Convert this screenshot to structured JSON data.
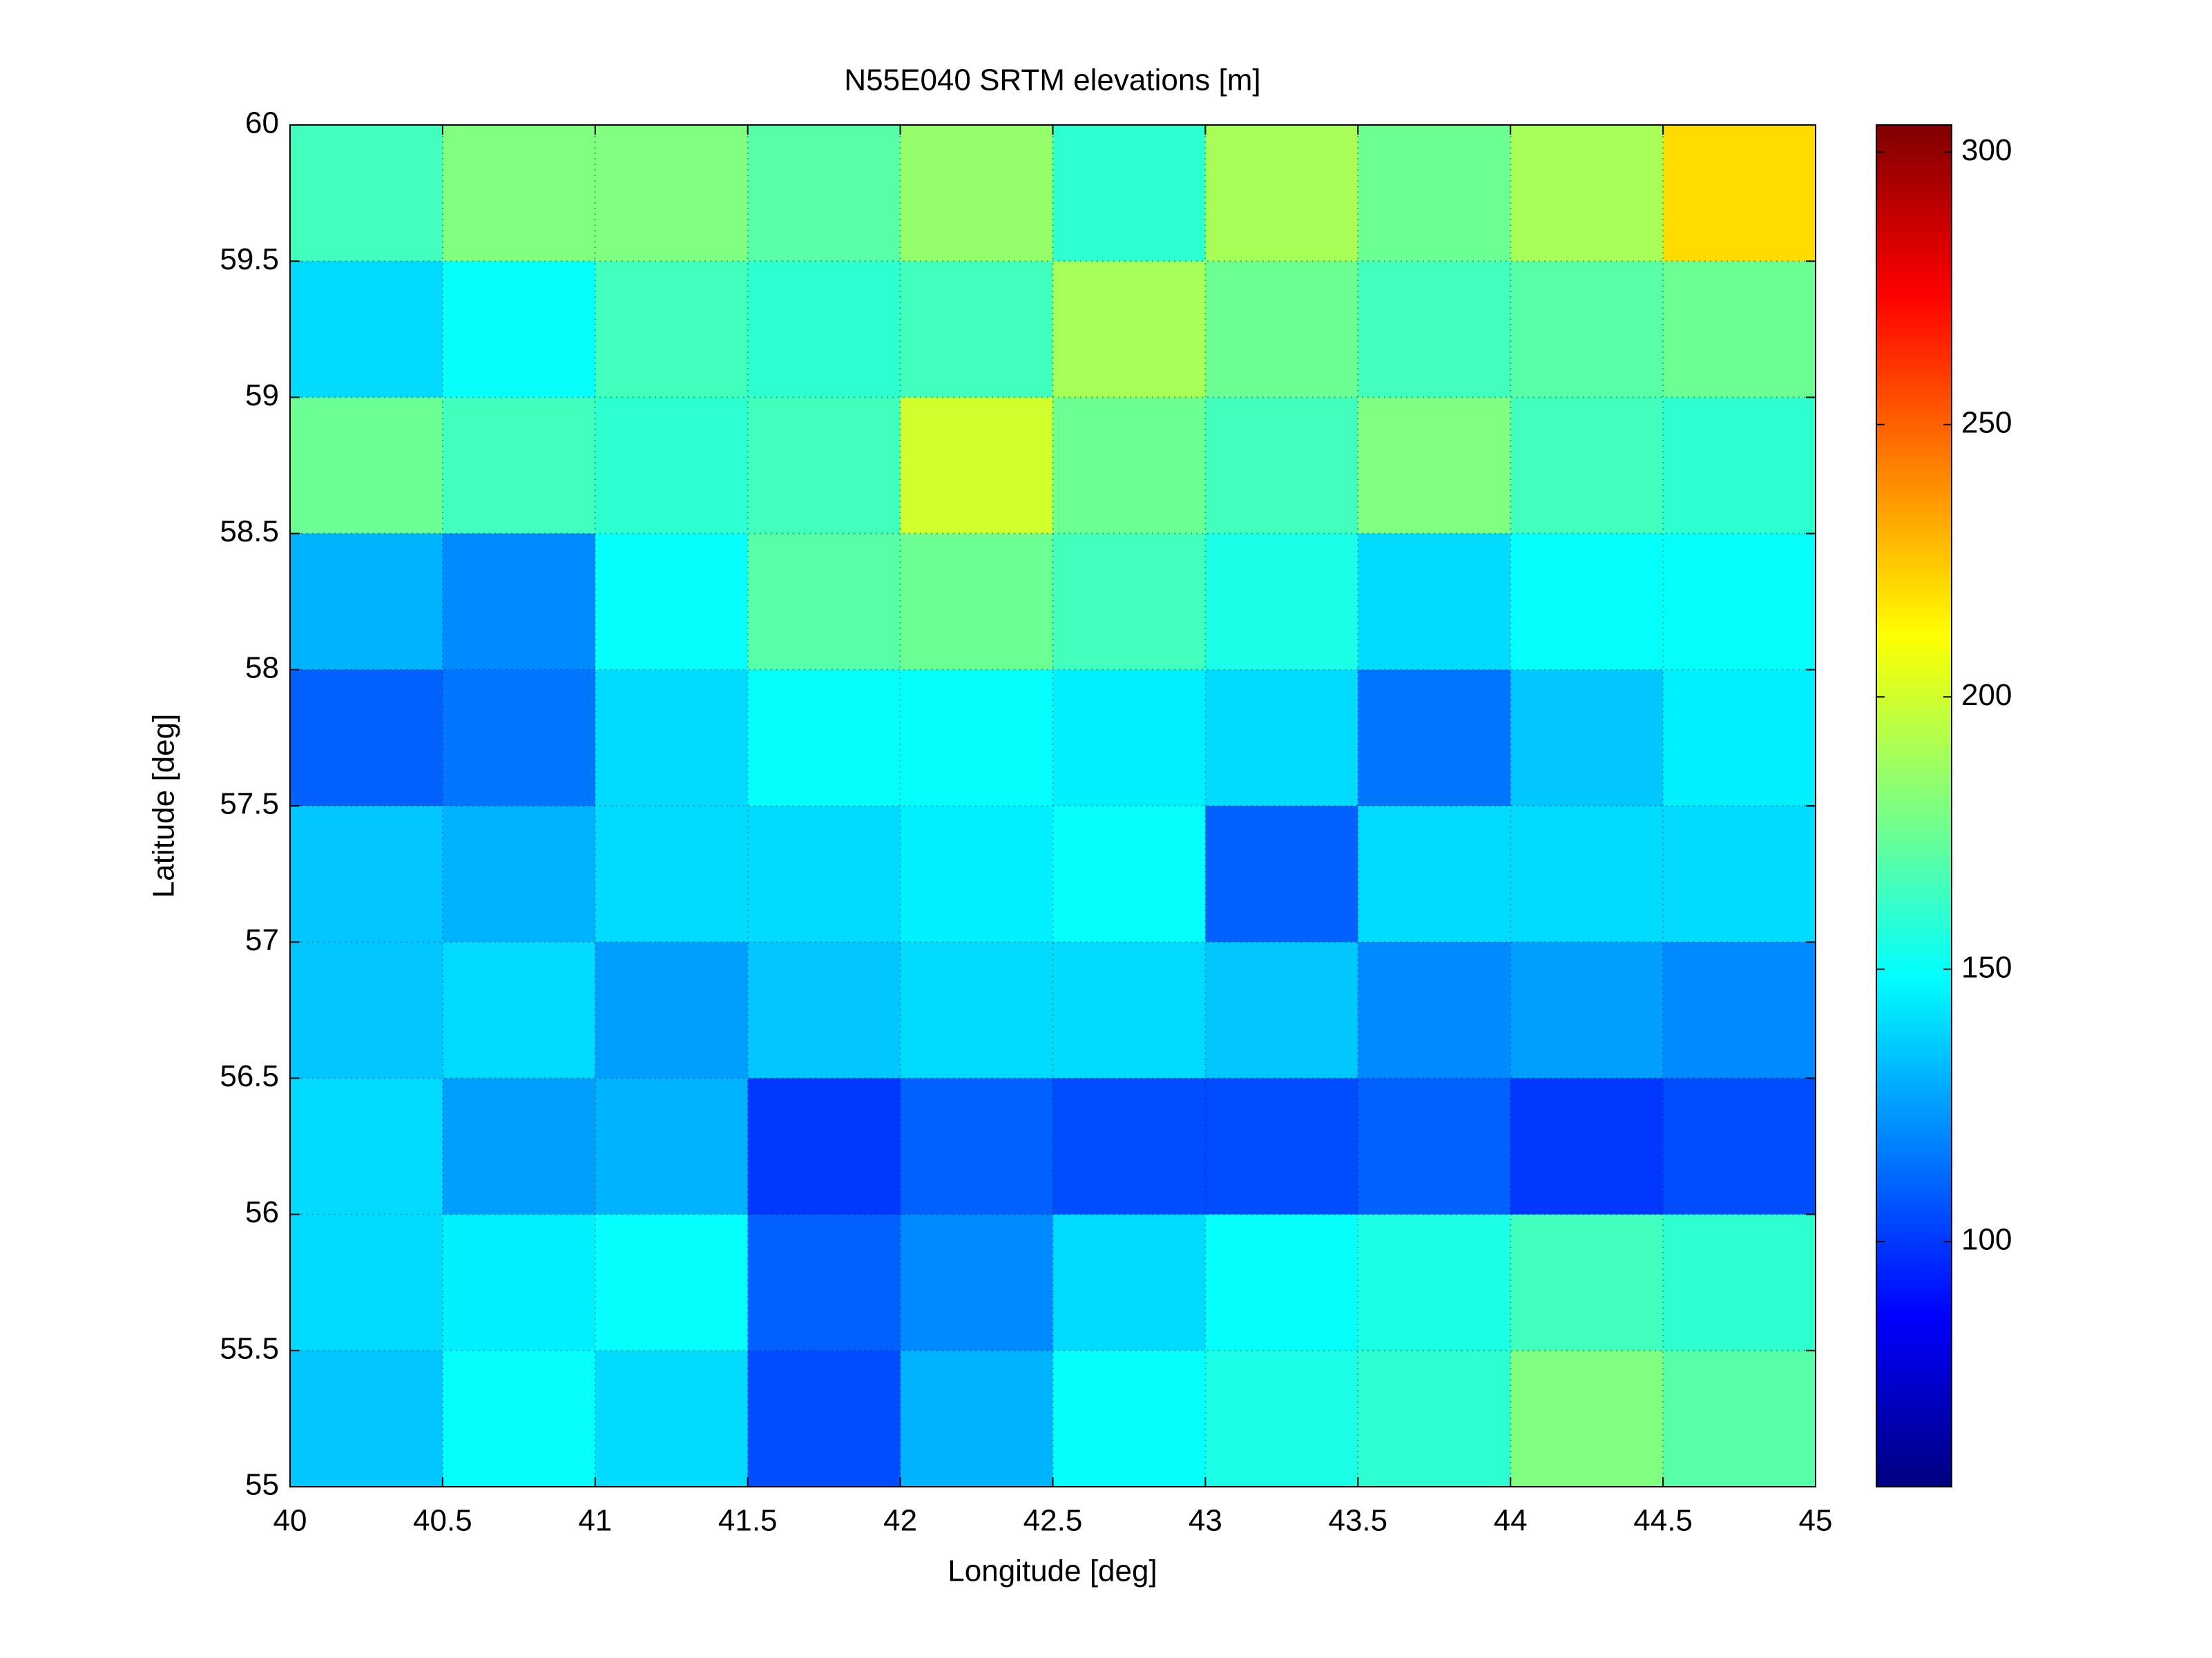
{
  "chart_data": {
    "type": "heatmap",
    "title": "N55E040 SRTM elevations [m]",
    "x_label": "Longitude [deg]",
    "y_label": "Latitude [deg]",
    "xlim": [
      40,
      45
    ],
    "ylim": [
      55,
      60
    ],
    "xticks": [
      40,
      40.5,
      41,
      41.5,
      42,
      42.5,
      43,
      43.5,
      44,
      44.5,
      45
    ],
    "yticks": [
      55,
      55.5,
      56,
      56.5,
      57,
      57.5,
      58,
      58.5,
      59,
      59.5,
      60
    ],
    "clim": [
      55,
      305
    ],
    "cticks": [
      100,
      150,
      200,
      250,
      300
    ],
    "colormap": "jet",
    "grid": true,
    "values": [
      [
        165,
        180,
        180,
        170,
        185,
        160,
        190,
        175,
        190,
        220
      ],
      [
        140,
        150,
        165,
        160,
        165,
        190,
        175,
        165,
        170,
        175
      ],
      [
        175,
        165,
        160,
        165,
        200,
        175,
        165,
        180,
        165,
        160
      ],
      [
        130,
        120,
        150,
        170,
        175,
        165,
        155,
        140,
        150,
        150
      ],
      [
        110,
        115,
        140,
        150,
        150,
        145,
        140,
        115,
        135,
        145
      ],
      [
        135,
        130,
        140,
        140,
        145,
        150,
        110,
        140,
        140,
        140
      ],
      [
        135,
        140,
        125,
        135,
        140,
        140,
        135,
        120,
        125,
        120
      ],
      [
        140,
        125,
        130,
        100,
        110,
        105,
        105,
        110,
        100,
        105
      ],
      [
        140,
        145,
        150,
        110,
        120,
        140,
        150,
        155,
        165,
        160
      ],
      [
        135,
        150,
        140,
        105,
        130,
        150,
        155,
        160,
        180,
        170
      ]
    ]
  }
}
